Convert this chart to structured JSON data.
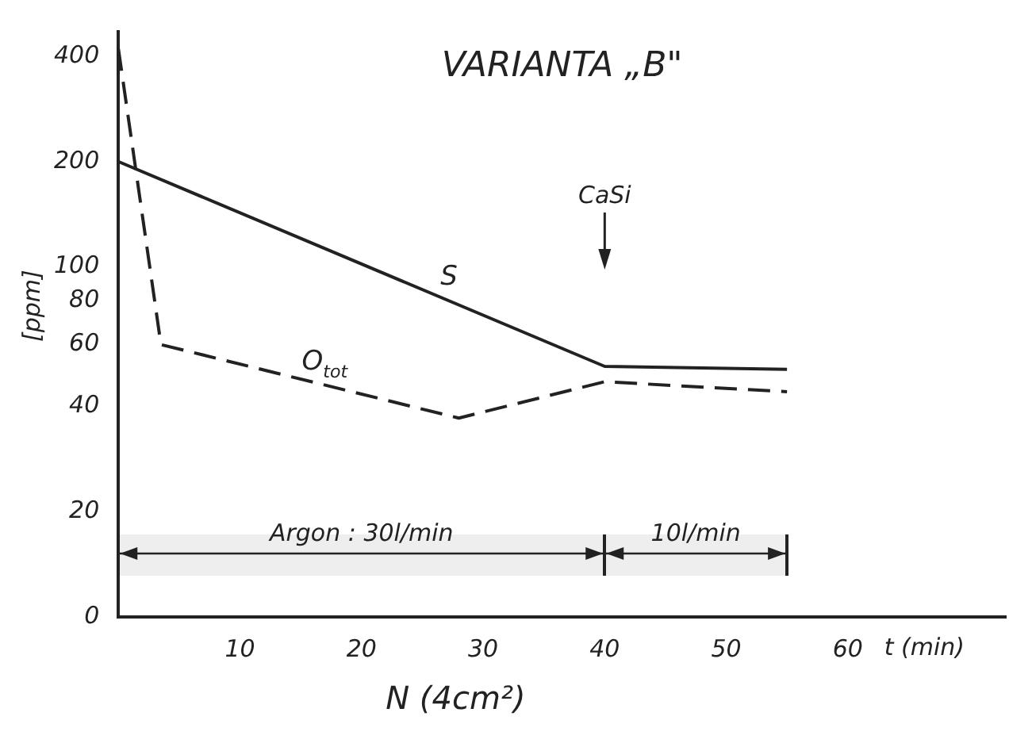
{
  "chart_data": {
    "type": "line",
    "title": "VARIANTA „B\"",
    "xlabel": "t (min)",
    "ylabel": "[ppm]",
    "log": "y",
    "xlim": [
      0,
      73
    ],
    "xticks": [
      10,
      20,
      30,
      40,
      50,
      60
    ],
    "ylim": [
      0,
      470
    ],
    "yticks": [
      0,
      20,
      40,
      60,
      80,
      100,
      200,
      400
    ],
    "grid": false,
    "legend": false,
    "marker": "none",
    "series": [
      {
        "name": "S",
        "color": "#222222",
        "x": [
          0,
          40,
          55
        ],
        "values": [
          200,
          52,
          51
        ],
        "line_style": "solid"
      },
      {
        "name": "O$_{tot}$",
        "color": "#222222",
        "x": [
          0,
          3.5,
          28,
          40,
          55
        ],
        "values": [
          420,
          60,
          37,
          47,
          44
        ],
        "line_style": "dashed"
      }
    ],
    "bands": [
      {
        "axis": "x",
        "from": 0,
        "to": 40,
        "label": "Argon : 30l/min",
        "color": "#222222"
      },
      {
        "axis": "x",
        "from": 40,
        "to": 55,
        "label": "10l/min",
        "color": "#222222"
      }
    ],
    "annotations": [
      "CaSi",
      "N (4cm²)"
    ]
  }
}
